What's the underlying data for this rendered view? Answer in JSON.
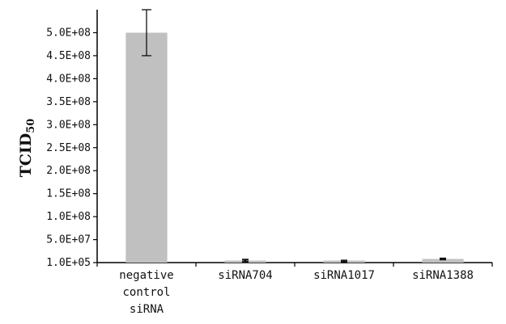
{
  "chart_data": {
    "type": "bar",
    "title": "",
    "xlabel": "",
    "ylabel": "TCID50",
    "categories": [
      [
        "negative",
        "control",
        "siRNA"
      ],
      [
        "siRNA704"
      ],
      [
        "siRNA1017"
      ],
      [
        "siRNA1388"
      ]
    ],
    "values": [
      500000000,
      4000000,
      1500000,
      8000000
    ],
    "errors": [
      50000000,
      2500000,
      1000000,
      1000000
    ],
    "ylim": [
      100000,
      550000000
    ],
    "ytick_values": [
      100000,
      50000000,
      100000000,
      150000000,
      200000000,
      250000000,
      300000000,
      350000000,
      400000000,
      450000000,
      500000000
    ],
    "ytick_labels": [
      "1.0E+05",
      "5.0E+07",
      "1.0E+08",
      "1.5E+08",
      "2.0E+08",
      "2.5E+08",
      "3.0E+08",
      "3.5E+08",
      "4.0E+08",
      "4.5E+08",
      "5.0E+08"
    ],
    "grid": false,
    "legend": "none",
    "bar_color": "#c0c0c0",
    "axis_color": "#000000"
  }
}
